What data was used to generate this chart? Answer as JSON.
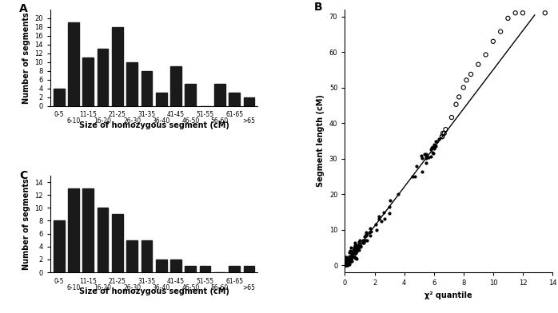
{
  "panel_A": {
    "label": "A",
    "categories_odd": [
      "0-5",
      "11-15",
      "21-25",
      "31-35",
      "41-45",
      "51-55",
      "61-65"
    ],
    "categories_even": [
      "6-10",
      "16-20",
      "26-30",
      "36-40",
      "46-50",
      "56-60",
      ">65"
    ],
    "values": [
      4,
      19,
      11,
      13,
      18,
      10,
      8,
      3,
      9,
      5,
      0,
      5,
      3,
      2
    ],
    "xlabel": "Size of homozygous segment (cM)",
    "ylabel": "Number of segments",
    "ylim": [
      0,
      22
    ],
    "yticks": [
      0,
      2,
      4,
      6,
      8,
      10,
      12,
      14,
      16,
      18,
      20
    ]
  },
  "panel_B": {
    "label": "B",
    "xlabel": "χ² quantile",
    "ylabel": "Segment length (cM)",
    "xlim": [
      0,
      14
    ],
    "ylim": [
      -2,
      72
    ],
    "xticks": [
      0,
      2,
      4,
      6,
      8,
      10,
      12,
      14
    ],
    "yticks": [
      0,
      10,
      20,
      30,
      40,
      50,
      60,
      70
    ],
    "line_x": [
      0,
      12.8
    ],
    "line_y": [
      0,
      70.4
    ]
  },
  "panel_C": {
    "label": "C",
    "categories_odd": [
      "0-5",
      "11-15",
      "21-25",
      "31-35",
      "41-45",
      "51-55",
      "61-65"
    ],
    "categories_even": [
      "6-10",
      "16-20",
      "26-30",
      "36-40",
      "46-50",
      "56-60",
      ">65"
    ],
    "values": [
      8,
      13,
      13,
      10,
      9,
      5,
      5,
      2,
      2,
      1,
      1,
      0,
      1,
      1
    ],
    "xlabel": "Size of homozygous segment (cM)",
    "ylabel": "Number of segments",
    "ylim": [
      0,
      15
    ],
    "yticks": [
      0,
      2,
      4,
      6,
      8,
      10,
      12,
      14
    ]
  },
  "bar_color": "#1a1a1a",
  "background_color": "#ffffff"
}
